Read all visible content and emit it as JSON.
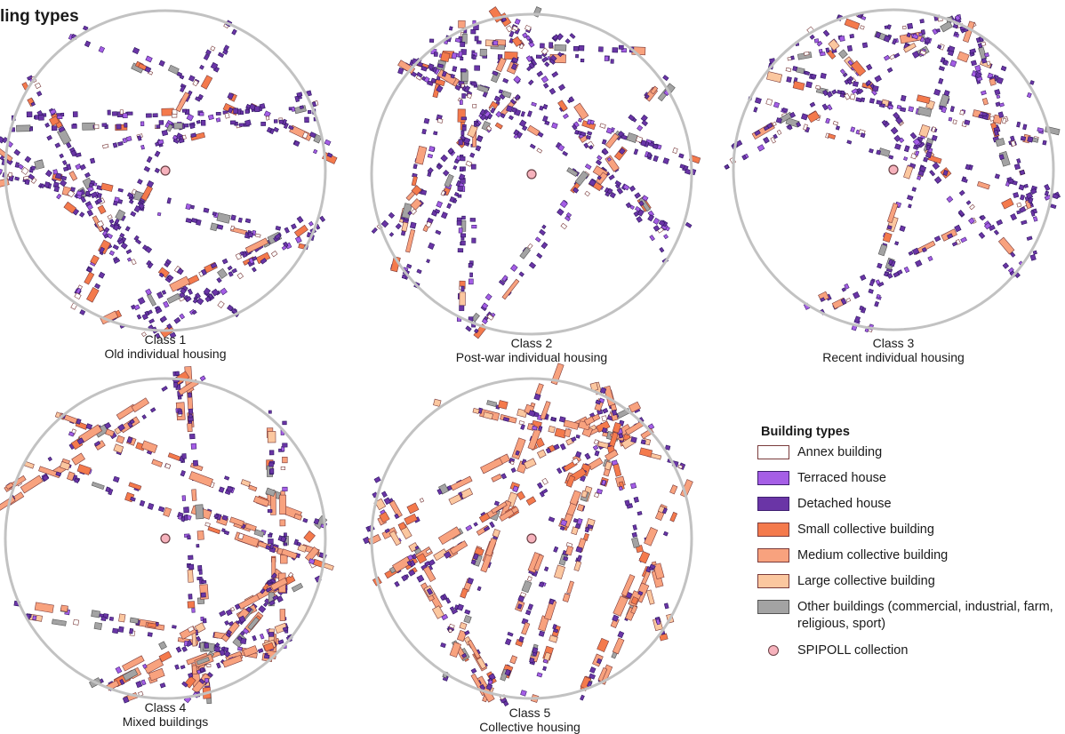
{
  "title": "ling types",
  "maps": [
    {
      "id": 1,
      "class_label": "Class 1",
      "subtitle": "Old individual housing",
      "seed": 11,
      "density": {
        "detached": 0.62,
        "terraced": 0.12,
        "annex": 0.1,
        "small": 0.07,
        "medium": 0.03,
        "large": 0.0,
        "other": 0.06
      }
    },
    {
      "id": 2,
      "class_label": "Class 2",
      "subtitle": "Post-war individual housing",
      "seed": 23,
      "density": {
        "detached": 0.62,
        "terraced": 0.16,
        "annex": 0.07,
        "small": 0.06,
        "medium": 0.04,
        "large": 0.01,
        "other": 0.04
      }
    },
    {
      "id": 3,
      "class_label": "Class 3",
      "subtitle": "Recent individual housing",
      "seed": 37,
      "density": {
        "detached": 0.56,
        "terraced": 0.2,
        "annex": 0.1,
        "small": 0.04,
        "medium": 0.04,
        "large": 0.02,
        "other": 0.04
      }
    },
    {
      "id": 4,
      "class_label": "Class 4",
      "subtitle": "Mixed buildings",
      "seed": 41,
      "density": {
        "detached": 0.5,
        "terraced": 0.08,
        "annex": 0.05,
        "small": 0.05,
        "medium": 0.22,
        "large": 0.04,
        "other": 0.06
      }
    },
    {
      "id": 5,
      "class_label": "Class 5",
      "subtitle": "Collective housing",
      "seed": 53,
      "density": {
        "detached": 0.4,
        "terraced": 0.06,
        "annex": 0.04,
        "small": 0.12,
        "medium": 0.24,
        "large": 0.08,
        "other": 0.06
      }
    }
  ],
  "legend": {
    "title": "Building types",
    "items": [
      {
        "key": "annex",
        "label": "Annex building",
        "fill": "#ffffff",
        "stroke": "#7a3b3b"
      },
      {
        "key": "terraced",
        "label": "Terraced house",
        "fill": "#a55ee6",
        "stroke": "#3f2070"
      },
      {
        "key": "detached",
        "label": "Detached house",
        "fill": "#6a35a6",
        "stroke": "#2e1660"
      },
      {
        "key": "small",
        "label": "Small collective building",
        "fill": "#f47a4c",
        "stroke": "#7a3b3b"
      },
      {
        "key": "medium",
        "label": "Medium collective building",
        "fill": "#f8a27e",
        "stroke": "#7a3b3b"
      },
      {
        "key": "large",
        "label": "Large collective building",
        "fill": "#fbc79f",
        "stroke": "#7a3b3b"
      },
      {
        "key": "other",
        "label": "Other buildings (commercial, industrial, farm, religious, sport)",
        "fill": "#a3a3a3",
        "stroke": "#555555"
      }
    ],
    "point_label": "SPIPOLL collection",
    "point_color": "#f6b2bc",
    "circle_color": "#c2c2c2"
  }
}
